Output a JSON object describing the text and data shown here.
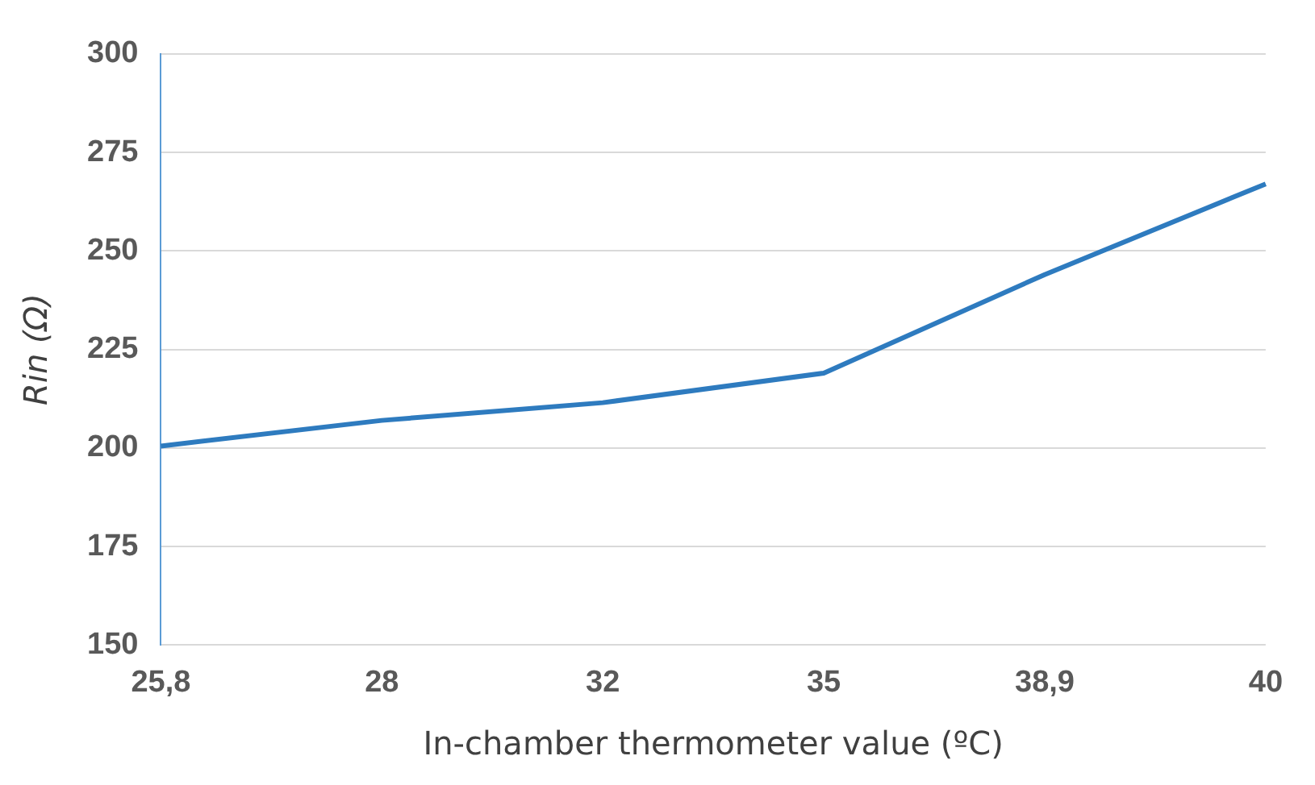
{
  "chart_data": {
    "type": "line",
    "xlabel": "In-chamber thermometer value (ºC)",
    "ylabel": "Rin (Ω)",
    "categories": [
      "25,8",
      "28",
      "32",
      "35",
      "38,9",
      "40"
    ],
    "series": [
      {
        "color": "#2e7bbf",
        "values": [
          200.5,
          207,
          211.5,
          219,
          244,
          267
        ]
      }
    ],
    "ylim": [
      150,
      300
    ],
    "yticks": [
      150,
      175,
      200,
      225,
      250,
      275,
      300
    ],
    "grid": "y",
    "legend": false,
    "marker": "none"
  }
}
